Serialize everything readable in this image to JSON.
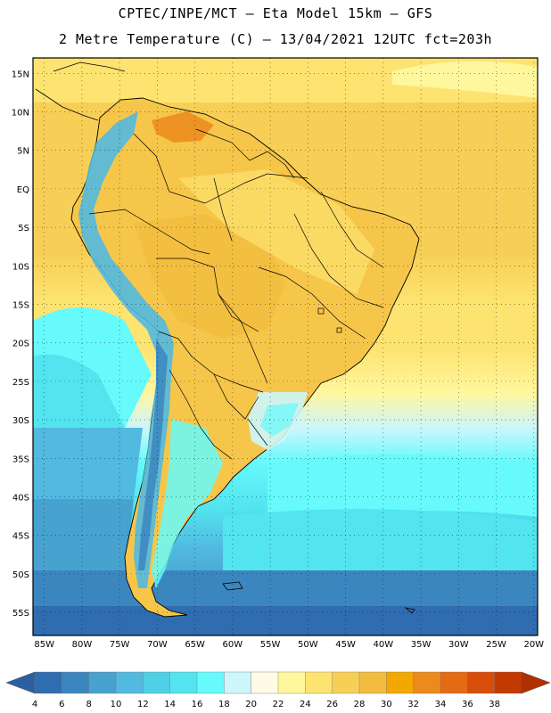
{
  "header": {
    "line1": "CPTEC/INPE/MCT –  Eta Model 15km – GFS",
    "line2": "2 Metre Temperature (C) – 13/04/2021 12UTC fct=203h"
  },
  "axes": {
    "lat_labels": [
      "15N",
      "10N",
      "5N",
      "EQ",
      "5S",
      "10S",
      "15S",
      "20S",
      "25S",
      "30S",
      "35S",
      "40S",
      "45S",
      "50S",
      "55S"
    ],
    "lat_values": [
      15,
      10,
      5,
      0,
      -5,
      -10,
      -15,
      -20,
      -25,
      -30,
      -35,
      -40,
      -45,
      -50,
      -55
    ],
    "lon_labels": [
      "85W",
      "80W",
      "75W",
      "70W",
      "65W",
      "60W",
      "55W",
      "50W",
      "45W",
      "40W",
      "35W",
      "30W",
      "25W",
      "20W"
    ],
    "lon_values": [
      -85,
      -80,
      -75,
      -70,
      -65,
      -60,
      -55,
      -50,
      -45,
      -40,
      -35,
      -30,
      -25,
      -20
    ],
    "lat_range": [
      -58,
      17
    ],
    "lon_range": [
      -86.5,
      -19.5
    ],
    "grid": "dotted"
  },
  "colorbar": {
    "ticks": [
      "4",
      "6",
      "8",
      "10",
      "12",
      "14",
      "16",
      "18",
      "20",
      "22",
      "24",
      "26",
      "28",
      "30",
      "32",
      "34",
      "36",
      "38"
    ],
    "colors": [
      "#2f6db0",
      "#3c86c0",
      "#47a2d0",
      "#52b9e0",
      "#4fd0e6",
      "#52e4ef",
      "#66fafc",
      "#cdf6fb",
      "#fffae6",
      "#fff79e",
      "#fde36f",
      "#f8cf56",
      "#f2bd3e",
      "#f2a800",
      "#ec8a1c",
      "#e46a14",
      "#d84d0a",
      "#c33a00"
    ],
    "under_color": "#2a5fa0",
    "over_color": "#b03000"
  }
}
